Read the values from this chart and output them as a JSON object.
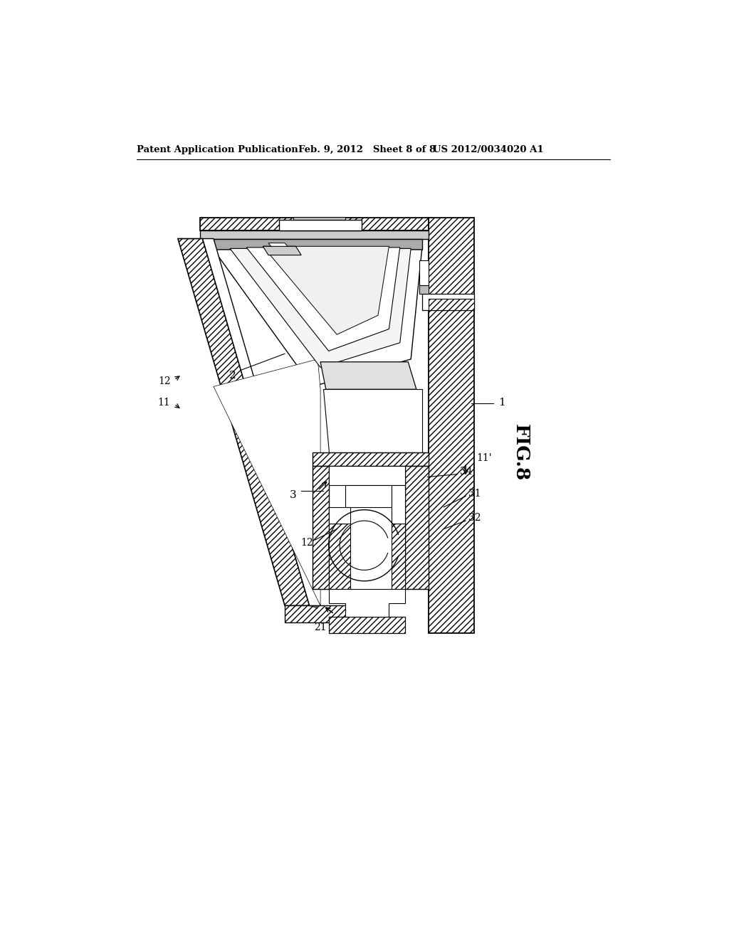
{
  "bg_color": "#ffffff",
  "header_left": "Patent Application Publication",
  "header_mid": "Feb. 9, 2012   Sheet 8 of 8",
  "header_right": "US 2012/0034020 A1",
  "fig_label": "FIG.8",
  "hatch_color": "#000000",
  "line_color": "#000000"
}
